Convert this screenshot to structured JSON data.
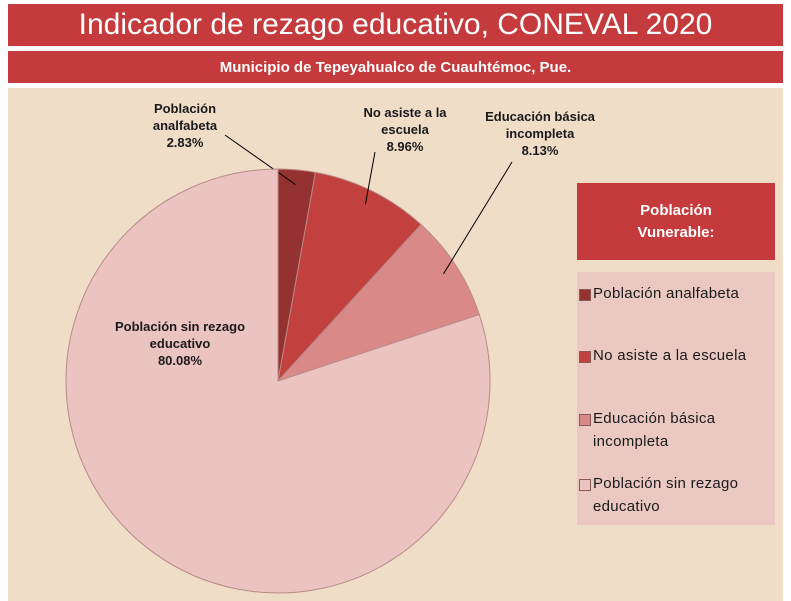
{
  "chart_data": {
    "type": "pie",
    "title": "Indicador de rezago educativo, CONEVAL 2020",
    "subtitle": "Municipio de Tepeyahualco de Cuauhtémoc, Pue.",
    "legend_title": "Población Vunerable:",
    "legend": "right",
    "categories": [
      "Población analfabeta",
      "No asiste a la escuela",
      "Educación básica incompleta",
      "Población sin rezago educativo"
    ],
    "values": [
      2.83,
      8.96,
      8.13,
      80.08
    ],
    "value_labels": [
      "2.83%",
      "8.96%",
      "8.13%",
      "80.08%"
    ],
    "colors": [
      "#943232",
      "#c2413f",
      "#d98a88",
      "#ebc3c1"
    ]
  }
}
